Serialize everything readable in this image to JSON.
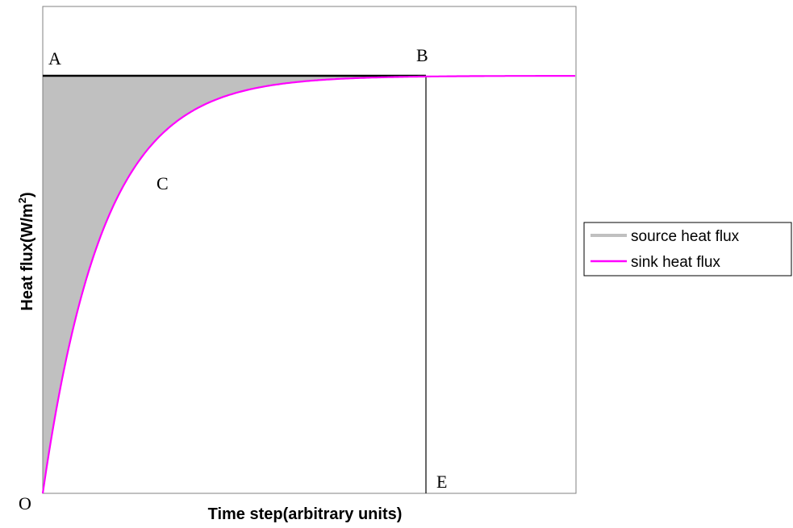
{
  "chart_data": {
    "type": "line",
    "xlabel": "Time step(arbitrary units)",
    "ylabel_main": "Heat flux(W/m",
    "ylabel_sup": "2",
    "ylabel_end": ")",
    "grid": false,
    "legend_position": "right",
    "point_labels": {
      "A": "A",
      "B": "B",
      "C": "C",
      "E": "E",
      "O": "O"
    },
    "series": [
      {
        "name": "source heat flux",
        "color": "#c0c0c0",
        "style": "filled-area"
      },
      {
        "name": "sink heat flux",
        "color": "#ff00ff",
        "style": "line"
      }
    ],
    "colors": {
      "source_fill": "#c0c0c0",
      "sink_line": "#ff00ff",
      "level_line": "#000000"
    }
  }
}
